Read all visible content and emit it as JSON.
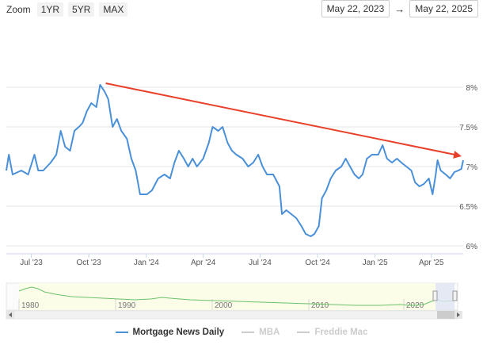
{
  "toolbar": {
    "zoom_label": "Zoom",
    "zoom_buttons": [
      "1YR",
      "5YR",
      "MAX"
    ],
    "range_from": "May 22, 2023",
    "range_arrow": "→",
    "range_to": "May 22, 2025"
  },
  "chart_data": {
    "type": "line",
    "title": "",
    "xlabel": "",
    "ylabel": "",
    "x_range": [
      "2023-05-22",
      "2025-05-22"
    ],
    "ylim": [
      5.9,
      8.5
    ],
    "x_tick_labels": [
      "Jul '23",
      "Oct '23",
      "Jan '24",
      "Apr '24",
      "Jul '24",
      "Oct '24",
      "Jan '25",
      "Apr '25"
    ],
    "y_tick_labels": [
      "6%",
      "6.5%",
      "7%",
      "7.5%",
      "8%"
    ],
    "y_ticks": [
      6.0,
      6.5,
      7.0,
      7.5,
      8.0
    ],
    "grid": "horizontal",
    "legend_position": "bottom",
    "series": [
      {
        "name": "Mortgage News Daily",
        "color": "#4a90d9",
        "points": [
          [
            "2023-05-22",
            6.95
          ],
          [
            "2023-05-26",
            7.15
          ],
          [
            "2023-06-01",
            6.9
          ],
          [
            "2023-06-15",
            6.95
          ],
          [
            "2023-06-26",
            6.9
          ],
          [
            "2023-07-06",
            7.15
          ],
          [
            "2023-07-12",
            6.95
          ],
          [
            "2023-07-20",
            6.95
          ],
          [
            "2023-08-01",
            7.05
          ],
          [
            "2023-08-10",
            7.15
          ],
          [
            "2023-08-17",
            7.45
          ],
          [
            "2023-08-24",
            7.25
          ],
          [
            "2023-09-01",
            7.2
          ],
          [
            "2023-09-08",
            7.45
          ],
          [
            "2023-09-15",
            7.5
          ],
          [
            "2023-09-21",
            7.55
          ],
          [
            "2023-09-28",
            7.7
          ],
          [
            "2023-10-05",
            7.8
          ],
          [
            "2023-10-13",
            7.75
          ],
          [
            "2023-10-19",
            8.03
          ],
          [
            "2023-10-26",
            7.95
          ],
          [
            "2023-11-01",
            7.85
          ],
          [
            "2023-11-08",
            7.5
          ],
          [
            "2023-11-15",
            7.6
          ],
          [
            "2023-11-22",
            7.45
          ],
          [
            "2023-12-01",
            7.35
          ],
          [
            "2023-12-08",
            7.1
          ],
          [
            "2023-12-15",
            6.95
          ],
          [
            "2023-12-22",
            6.65
          ],
          [
            "2024-01-02",
            6.65
          ],
          [
            "2024-01-10",
            6.7
          ],
          [
            "2024-01-20",
            6.85
          ],
          [
            "2024-01-30",
            6.9
          ],
          [
            "2024-02-08",
            6.85
          ],
          [
            "2024-02-15",
            7.05
          ],
          [
            "2024-02-22",
            7.2
          ],
          [
            "2024-03-01",
            7.1
          ],
          [
            "2024-03-08",
            7.0
          ],
          [
            "2024-03-15",
            7.1
          ],
          [
            "2024-03-22",
            7.0
          ],
          [
            "2024-04-01",
            7.1
          ],
          [
            "2024-04-10",
            7.3
          ],
          [
            "2024-04-16",
            7.5
          ],
          [
            "2024-04-25",
            7.45
          ],
          [
            "2024-05-02",
            7.5
          ],
          [
            "2024-05-10",
            7.3
          ],
          [
            "2024-05-17",
            7.2
          ],
          [
            "2024-05-24",
            7.15
          ],
          [
            "2024-06-03",
            7.1
          ],
          [
            "2024-06-12",
            7.0
          ],
          [
            "2024-06-20",
            7.05
          ],
          [
            "2024-06-28",
            7.15
          ],
          [
            "2024-07-05",
            7.0
          ],
          [
            "2024-07-12",
            6.9
          ],
          [
            "2024-07-22",
            6.9
          ],
          [
            "2024-08-01",
            6.75
          ],
          [
            "2024-08-05",
            6.4
          ],
          [
            "2024-08-12",
            6.45
          ],
          [
            "2024-08-20",
            6.4
          ],
          [
            "2024-08-28",
            6.35
          ],
          [
            "2024-09-05",
            6.25
          ],
          [
            "2024-09-12",
            6.15
          ],
          [
            "2024-09-20",
            6.12
          ],
          [
            "2024-09-26",
            6.15
          ],
          [
            "2024-10-03",
            6.25
          ],
          [
            "2024-10-08",
            6.6
          ],
          [
            "2024-10-15",
            6.7
          ],
          [
            "2024-10-22",
            6.85
          ],
          [
            "2024-10-30",
            6.95
          ],
          [
            "2024-11-08",
            7.0
          ],
          [
            "2024-11-15",
            7.1
          ],
          [
            "2024-11-22",
            7.0
          ],
          [
            "2024-11-29",
            6.9
          ],
          [
            "2024-12-06",
            6.85
          ],
          [
            "2024-12-12",
            6.9
          ],
          [
            "2024-12-19",
            7.1
          ],
          [
            "2024-12-27",
            7.15
          ],
          [
            "2025-01-06",
            7.15
          ],
          [
            "2025-01-13",
            7.27
          ],
          [
            "2025-01-20",
            7.1
          ],
          [
            "2025-01-28",
            7.05
          ],
          [
            "2025-02-05",
            7.1
          ],
          [
            "2025-02-12",
            7.05
          ],
          [
            "2025-02-20",
            7.0
          ],
          [
            "2025-02-28",
            6.95
          ],
          [
            "2025-03-06",
            6.8
          ],
          [
            "2025-03-13",
            6.75
          ],
          [
            "2025-03-20",
            6.78
          ],
          [
            "2025-03-28",
            6.85
          ],
          [
            "2025-04-03",
            6.65
          ],
          [
            "2025-04-08",
            6.9
          ],
          [
            "2025-04-11",
            7.08
          ],
          [
            "2025-04-16",
            6.95
          ],
          [
            "2025-04-24",
            6.9
          ],
          [
            "2025-05-01",
            6.85
          ],
          [
            "2025-05-08",
            6.93
          ],
          [
            "2025-05-14",
            6.95
          ],
          [
            "2025-05-19",
            6.97
          ],
          [
            "2025-05-22",
            7.08
          ]
        ]
      }
    ],
    "trend_arrow": {
      "color": "#e8402a",
      "from": [
        "2023-10-28",
        8.05
      ],
      "to": [
        "2025-05-22",
        7.13
      ]
    },
    "navigator": {
      "x_labels": [
        "1980",
        "1990",
        "2000",
        "2010",
        "2020"
      ],
      "series_color": "#6cc26c"
    },
    "legend": [
      {
        "name": "Mortgage News Daily",
        "color": "#4a90d9",
        "active": true
      },
      {
        "name": "MBA",
        "color": "#cccccc",
        "active": false
      },
      {
        "name": "Freddie Mac",
        "color": "#cccccc",
        "active": false
      }
    ]
  }
}
